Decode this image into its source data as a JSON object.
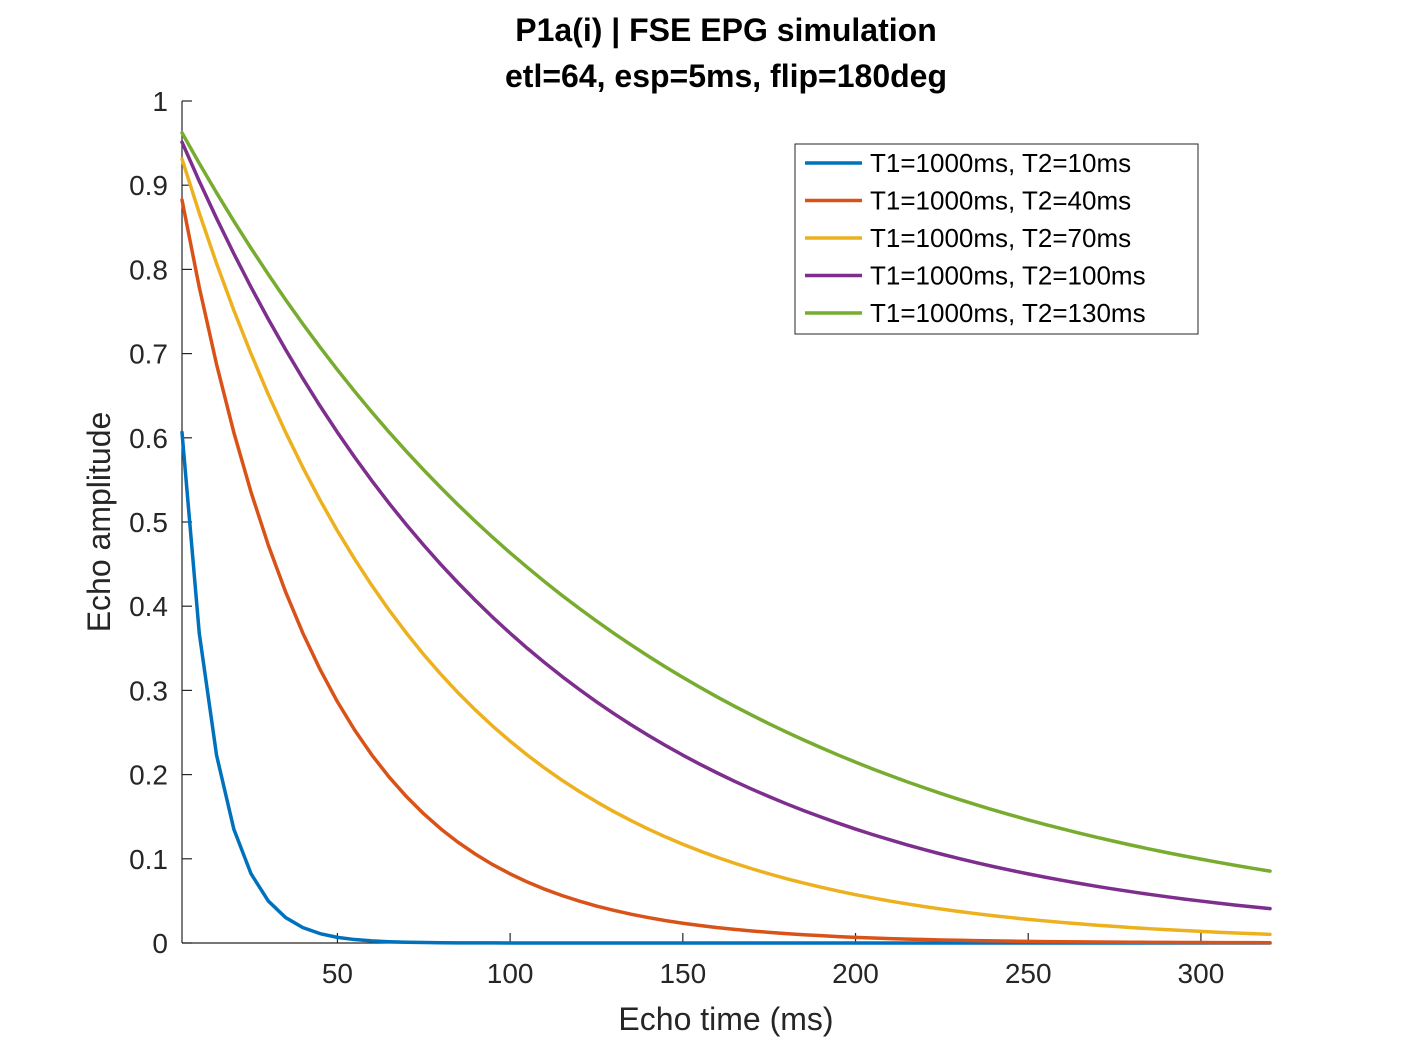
{
  "chart_data": {
    "type": "line",
    "title": "P1a(i) | FSE EPG simulation",
    "subtitle": "etl=64, esp=5ms, flip=180deg",
    "xlabel": "Echo time (ms)",
    "ylabel": "Echo amplitude",
    "xlim": [
      5,
      320
    ],
    "ylim": [
      0,
      1
    ],
    "xticks": [
      50,
      100,
      150,
      200,
      250,
      300
    ],
    "yticks": [
      0,
      0.1,
      0.2,
      0.3,
      0.4,
      0.5,
      0.6,
      0.7,
      0.8,
      0.9,
      1
    ],
    "xtick_labels": [
      "50",
      "100",
      "150",
      "200",
      "250",
      "300"
    ],
    "ytick_labels": [
      "0",
      "0.1",
      "0.2",
      "0.3",
      "0.4",
      "0.5",
      "0.6",
      "0.7",
      "0.8",
      "0.9",
      "1"
    ],
    "grid": false,
    "legend_position": "top-right",
    "x": [
      5,
      10,
      15,
      20,
      25,
      30,
      35,
      40,
      45,
      50,
      55,
      60,
      65,
      70,
      75,
      80,
      85,
      90,
      95,
      100,
      105,
      110,
      115,
      120,
      125,
      130,
      135,
      140,
      145,
      150,
      155,
      160,
      165,
      170,
      175,
      180,
      185,
      190,
      195,
      200,
      205,
      210,
      215,
      220,
      225,
      230,
      235,
      240,
      245,
      250,
      255,
      260,
      265,
      270,
      275,
      280,
      285,
      290,
      295,
      300,
      305,
      310,
      315,
      320
    ],
    "series": [
      {
        "name": "T1=1000ms, T2=10ms",
        "color": "#0072BD",
        "values": [
          0.6065,
          0.3679,
          0.2231,
          0.1353,
          0.0821,
          0.0498,
          0.0302,
          0.0183,
          0.0111,
          0.0067,
          0.0041,
          0.0025,
          0.0015,
          0.0009,
          0.0006,
          0.0003,
          0.0002,
          0.0001,
          0.0001,
          0.0,
          0.0,
          0.0,
          0.0,
          0.0,
          0.0,
          0.0,
          0.0,
          0.0,
          0.0,
          0.0,
          0.0,
          0.0,
          0.0,
          0.0,
          0.0,
          0.0,
          0.0,
          0.0,
          0.0,
          0.0,
          0.0,
          0.0,
          0.0,
          0.0,
          0.0,
          0.0,
          0.0,
          0.0,
          0.0,
          0.0,
          0.0,
          0.0,
          0.0,
          0.0,
          0.0,
          0.0,
          0.0,
          0.0,
          0.0,
          0.0,
          0.0,
          0.0,
          0.0,
          0.0
        ]
      },
      {
        "name": "T1=1000ms, T2=40ms",
        "color": "#D95319",
        "values": [
          0.8825,
          0.7788,
          0.6873,
          0.6065,
          0.5353,
          0.4724,
          0.4169,
          0.3679,
          0.3247,
          0.2865,
          0.2528,
          0.2231,
          0.1969,
          0.1738,
          0.1534,
          0.1353,
          0.1194,
          0.1054,
          0.093,
          0.0821,
          0.0724,
          0.0639,
          0.0564,
          0.0498,
          0.0439,
          0.0388,
          0.0342,
          0.0302,
          0.0266,
          0.0235,
          0.0208,
          0.0183,
          0.0162,
          0.0143,
          0.0126,
          0.0111,
          0.0098,
          0.0087,
          0.0076,
          0.0067,
          0.0059,
          0.0052,
          0.0046,
          0.0041,
          0.0036,
          0.0032,
          0.0028,
          0.0025,
          0.0022,
          0.0019,
          0.0017,
          0.0015,
          0.0013,
          0.0012,
          0.001,
          0.0009,
          0.0008,
          0.0007,
          0.0006,
          0.0006,
          0.0005,
          0.0004,
          0.0004,
          0.0003
        ]
      },
      {
        "name": "T1=1000ms, T2=70ms",
        "color": "#EDB120",
        "values": [
          0.9311,
          0.8669,
          0.8071,
          0.7515,
          0.6997,
          0.6514,
          0.6065,
          0.5647,
          0.5258,
          0.4895,
          0.4558,
          0.4244,
          0.3951,
          0.3679,
          0.3425,
          0.3189,
          0.2969,
          0.2765,
          0.2574,
          0.2397,
          0.2231,
          0.2077,
          0.1934,
          0.1801,
          0.1677,
          0.1561,
          0.1454,
          0.1353,
          0.126,
          0.1173,
          0.1092,
          0.1017,
          0.0947,
          0.0882,
          0.0821,
          0.0764,
          0.0712,
          0.0663,
          0.0617,
          0.0574,
          0.0535,
          0.0498,
          0.0464,
          0.0432,
          0.0402,
          0.0374,
          0.0348,
          0.0324,
          0.0302,
          0.0281,
          0.0262,
          0.0244,
          0.0227,
          0.0211,
          0.0197,
          0.0183,
          0.017,
          0.0159,
          0.0148,
          0.0138,
          0.0128,
          0.0119,
          0.0111,
          0.0103
        ]
      },
      {
        "name": "T1=1000ms, T2=100ms",
        "color": "#7E2F8E",
        "values": [
          0.9512,
          0.9048,
          0.8607,
          0.8187,
          0.7788,
          0.7408,
          0.7047,
          0.6703,
          0.6376,
          0.6065,
          0.5769,
          0.5488,
          0.522,
          0.4966,
          0.4724,
          0.4493,
          0.4274,
          0.4066,
          0.3867,
          0.3679,
          0.3499,
          0.3329,
          0.3166,
          0.3012,
          0.2865,
          0.2725,
          0.2592,
          0.2466,
          0.2346,
          0.2231,
          0.2122,
          0.2019,
          0.192,
          0.1827,
          0.1738,
          0.1653,
          0.1572,
          0.1496,
          0.1423,
          0.1353,
          0.1287,
          0.1225,
          0.1165,
          0.1108,
          0.1054,
          0.1003,
          0.0954,
          0.0907,
          0.0863,
          0.0821,
          0.0781,
          0.0743,
          0.0707,
          0.0672,
          0.0639,
          0.0608,
          0.0578,
          0.055,
          0.0523,
          0.0498,
          0.0474,
          0.045,
          0.0429,
          0.0408
        ]
      },
      {
        "name": "T1=1000ms, T2=130ms",
        "color": "#77AC30",
        "values": [
          0.9623,
          0.926,
          0.891,
          0.8574,
          0.8251,
          0.794,
          0.764,
          0.7352,
          0.7075,
          0.6808,
          0.6551,
          0.6304,
          0.6065,
          0.5837,
          0.5617,
          0.5405,
          0.5201,
          0.5005,
          0.4816,
          0.4634,
          0.446,
          0.4291,
          0.4129,
          0.3974,
          0.3824,
          0.3679,
          0.3541,
          0.3407,
          0.3278,
          0.3155,
          0.3036,
          0.2921,
          0.2811,
          0.2705,
          0.2603,
          0.2505,
          0.2411,
          0.232,
          0.2232,
          0.2148,
          0.2067,
          0.1989,
          0.1914,
          0.1842,
          0.1772,
          0.1705,
          0.1641,
          0.1579,
          0.152,
          0.1462,
          0.1407,
          0.1354,
          0.1303,
          0.1254,
          0.1207,
          0.1161,
          0.1117,
          0.1075,
          0.1035,
          0.0996,
          0.0958,
          0.0922,
          0.0887,
          0.0854
        ]
      }
    ]
  }
}
